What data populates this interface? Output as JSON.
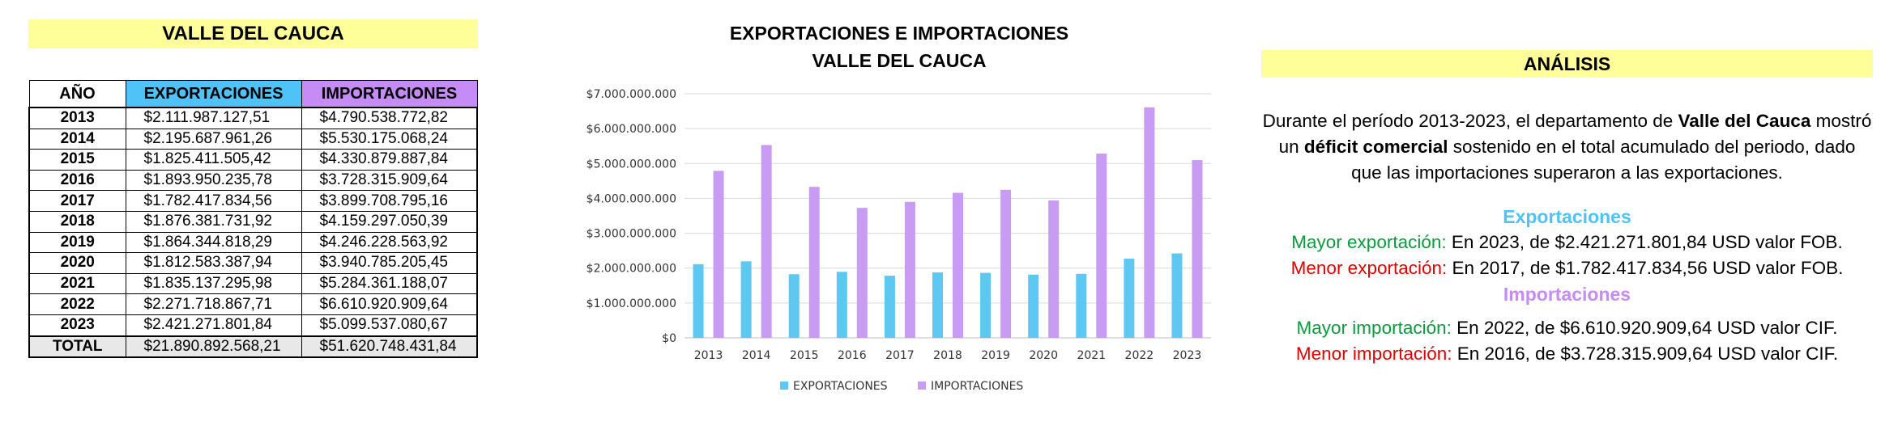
{
  "table": {
    "title": "VALLE DEL CAUCA",
    "headers": {
      "year": "AÑO",
      "exp": "EXPORTACIONES",
      "imp": "IMPORTACIONES"
    },
    "rows": [
      {
        "year": "2013",
        "exp": "$2.111.987.127,51",
        "imp": "$4.790.538.772,82"
      },
      {
        "year": "2014",
        "exp": "$2.195.687.961,26",
        "imp": "$5.530.175.068,24"
      },
      {
        "year": "2015",
        "exp": "$1.825.411.505,42",
        "imp": "$4.330.879.887,84"
      },
      {
        "year": "2016",
        "exp": "$1.893.950.235,78",
        "imp": "$3.728.315.909,64"
      },
      {
        "year": "2017",
        "exp": "$1.782.417.834,56",
        "imp": "$3.899.708.795,16"
      },
      {
        "year": "2018",
        "exp": "$1.876.381.731,92",
        "imp": "$4.159.297.050,39"
      },
      {
        "year": "2019",
        "exp": "$1.864.344.818,29",
        "imp": "$4.246.228.563,92"
      },
      {
        "year": "2020",
        "exp": "$1.812.583.387,94",
        "imp": "$3.940.785.205,45"
      },
      {
        "year": "2021",
        "exp": "$1.835.137.295,98",
        "imp": "$5.284.361.188,07"
      },
      {
        "year": "2022",
        "exp": "$2.271.718.867,71",
        "imp": "$6.610.920.909,64"
      },
      {
        "year": "2023",
        "exp": "$2.421.271.801,84",
        "imp": "$5.099.537.080,67"
      }
    ],
    "total": {
      "label": "TOTAL",
      "exp": "$21.890.892.568,21",
      "imp": "$51.620.748.431,84"
    }
  },
  "chart_title": {
    "line1": "EXPORTACIONES E IMPORTACIONES",
    "line2": "VALLE DEL CAUCA"
  },
  "colors": {
    "exp": "#5ec8f2",
    "imp": "#c89cf2",
    "grid": "#d9d9d9"
  },
  "chart_data": {
    "type": "bar",
    "categories": [
      "2013",
      "2014",
      "2015",
      "2016",
      "2017",
      "2018",
      "2019",
      "2020",
      "2021",
      "2022",
      "2023"
    ],
    "series": [
      {
        "name": "EXPORTACIONES",
        "values": [
          2111987127.51,
          2195687961.26,
          1825411505.42,
          1893950235.78,
          1782417834.56,
          1876381731.92,
          1864344818.29,
          1812583387.94,
          1835137295.98,
          2271718867.71,
          2421271801.84
        ]
      },
      {
        "name": "IMPORTACIONES",
        "values": [
          4790538772.82,
          5530175068.24,
          4330879887.84,
          3728315909.64,
          3899708795.16,
          4159297050.39,
          4246228563.92,
          3940785205.45,
          5284361188.07,
          6610920909.64,
          5099537080.67
        ]
      }
    ],
    "ylim": [
      0,
      7000000000
    ],
    "yticks": [
      "$0",
      "$1.000.000.000",
      "$2.000.000.000",
      "$3.000.000.000",
      "$4.000.000.000",
      "$5.000.000.000",
      "$6.000.000.000",
      "$7.000.000.000"
    ],
    "grid": true,
    "legend": "bottom"
  },
  "analysis": {
    "title": "ANÁLISIS",
    "intro_a": "Durante el período 2013-2023, el departamento de ",
    "intro_b": "Valle del Cauca",
    "intro_c": " mostró un ",
    "intro_d": "déficit comercial",
    "intro_e": " sostenido en el total acumulado del periodo, dado que las importaciones superaron a las exportaciones.",
    "exp_title": "Exportaciones",
    "exp_max_label": "Mayor exportación:",
    "exp_max_text": " En 2023, de $2.421.271.801,84 USD valor FOB.",
    "exp_min_label": "Menor exportación:",
    "exp_min_text": " En 2017, de $1.782.417.834,56 USD valor FOB.",
    "imp_title": "Importaciones",
    "imp_max_label": "Mayor importación:",
    "imp_max_text": " En 2022, de $6.610.920.909,64 USD valor CIF.",
    "imp_min_label": "Menor importación:",
    "imp_min_text": " En 2016, de $3.728.315.909,64 USD valor CIF."
  }
}
